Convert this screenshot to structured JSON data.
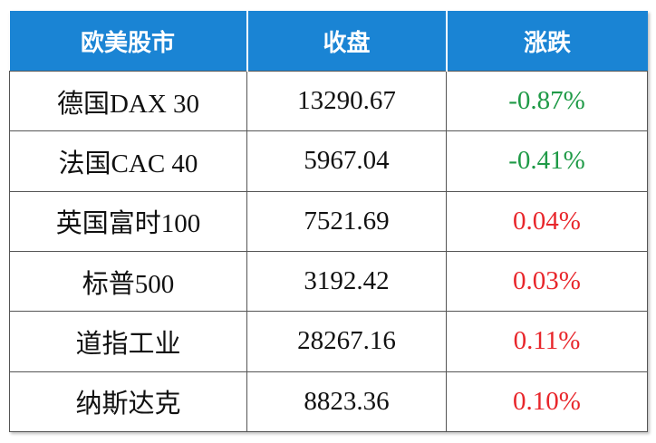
{
  "table": {
    "header": [
      "欧美股市",
      "收盘",
      "涨跌"
    ],
    "rows": [
      [
        "德国DAX 30",
        "13290.67",
        "-0.87%"
      ],
      [
        "法国CAC 40",
        "5967.04",
        "-0.41%"
      ],
      [
        "英国富时100",
        "7521.69",
        "0.04%"
      ],
      [
        "标普500",
        "3192.42",
        "0.03%"
      ],
      [
        "道指工业",
        "28267.16",
        "0.11%"
      ],
      [
        "纳斯达克",
        "8823.36",
        "0.10%"
      ]
    ],
    "header_color": "#1a84d4",
    "change_colors": [
      "#1f9a47",
      "#1f9a47",
      "#e8262b",
      "#e8262b",
      "#e8262b",
      "#e8262b"
    ]
  }
}
